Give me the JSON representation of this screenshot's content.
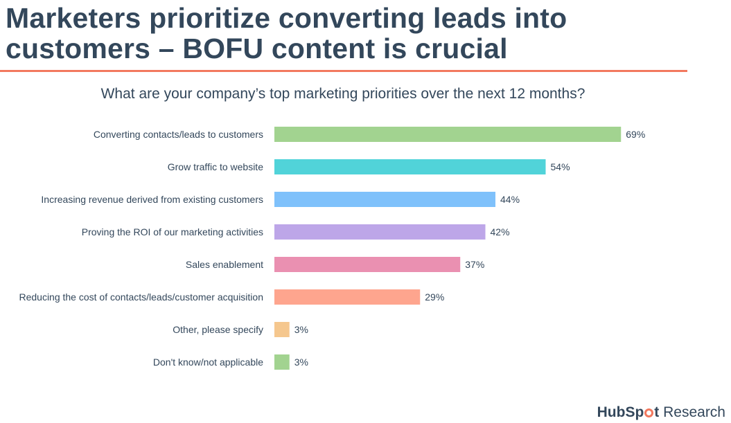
{
  "header": {
    "title": "Marketers prioritize converting leads into\ncustomers – BOFU content is crucial"
  },
  "logo": {
    "brand_before": "HubSp",
    "brand_after": "t",
    "suffix": " Research",
    "accent": "#f2795f"
  },
  "chart_data": {
    "type": "bar",
    "orientation": "horizontal",
    "title": "What are your company’s top marketing priorities over the next 12 months?",
    "categories": [
      "Converting contacts/leads to customers",
      "Grow traffic to website",
      "Increasing revenue derived from existing customers",
      "Proving the ROI of our marketing activities",
      "Sales enablement",
      "Reducing the cost of contacts/leads/customer acquisition",
      "Other, please specify",
      "Don't know/not applicable"
    ],
    "values": [
      69,
      54,
      44,
      42,
      37,
      29,
      3,
      3
    ],
    "value_labels": [
      "69%",
      "54%",
      "44%",
      "42%",
      "37%",
      "29%",
      "3%",
      "3%"
    ],
    "colors": [
      "#a2d390",
      "#51d3d9",
      "#7fc1fb",
      "#bda6e8",
      "#ea90b1",
      "#fea58e",
      "#f5c78e",
      "#a2d390"
    ],
    "xlabel": "",
    "ylabel": "",
    "grid": false
  }
}
